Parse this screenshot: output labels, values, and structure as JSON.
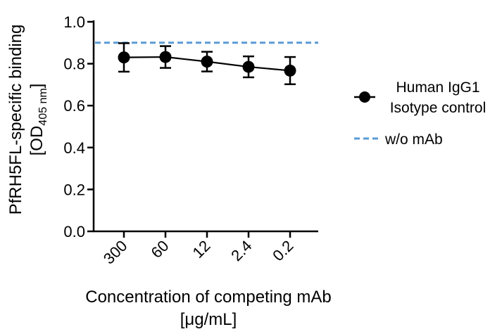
{
  "chart_data": {
    "type": "line",
    "categories": [
      "300",
      "60",
      "12",
      "2.4",
      "0.2"
    ],
    "y_ticks": [
      "0.0",
      "0.2",
      "0.4",
      "0.6",
      "0.8",
      "1.0"
    ],
    "ylim": [
      0,
      1.0
    ],
    "xlabel_line1": "Concentration of competing mAb",
    "xlabel_line2": "[μg/mL]",
    "ylabel_line1": "PfRH5FL-specific binding",
    "ylabel_line2_prefix": "[OD",
    "ylabel_line2_sub": "405 nm",
    "ylabel_line2_suffix": "]",
    "series": [
      {
        "name_line1": "Human IgG1",
        "name_line2": "Isotype control",
        "values": [
          0.83,
          0.832,
          0.81,
          0.785,
          0.767
        ],
        "error": [
          0.068,
          0.052,
          0.047,
          0.05,
          0.065
        ],
        "color": "#000000"
      }
    ],
    "reference_line": {
      "name": "w/o mAb",
      "value": 0.9,
      "color": "#5b9bd5"
    },
    "legend_position": "right",
    "grid": false
  }
}
